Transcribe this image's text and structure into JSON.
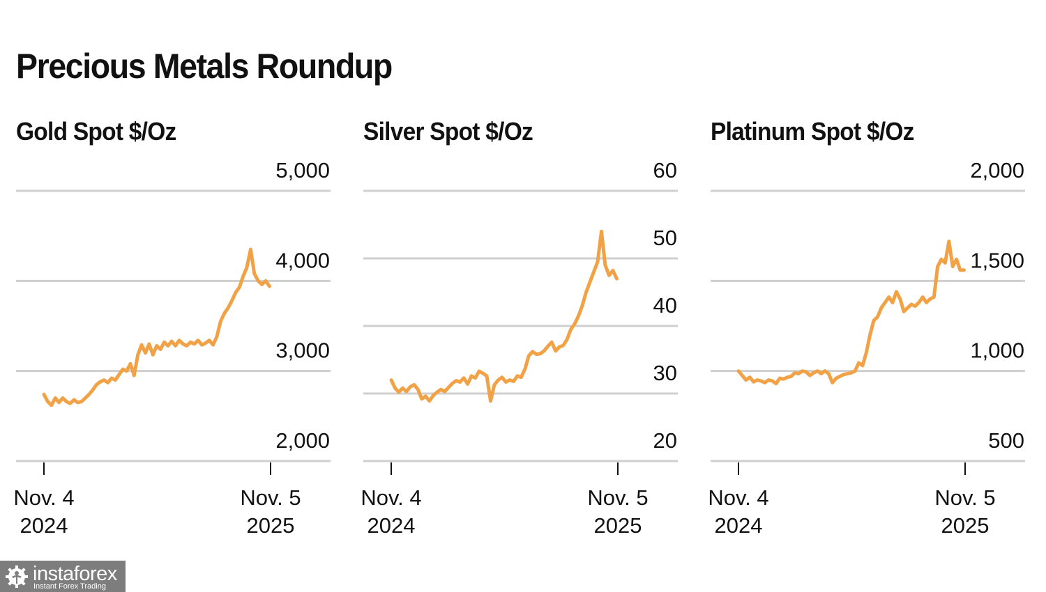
{
  "page": {
    "title": "Precious Metals Roundup"
  },
  "watermark": {
    "brand": "instaforex",
    "tagline": "Instant Forex Trading",
    "icon": "gear-person-icon"
  },
  "colors": {
    "line": "#f2a246",
    "grid": "#cfcfcf",
    "text": "#111111",
    "watermark_bg": "#7d7d7d"
  },
  "chart_data": [
    {
      "type": "line",
      "title": "Gold Spot $/Oz",
      "xlabel": "",
      "ylabel": "",
      "x_ticks": [
        {
          "label_line1": "Nov. 4",
          "label_line2": "2024"
        },
        {
          "label_line1": "Nov. 5",
          "label_line2": "2025"
        }
      ],
      "x_range": [
        "2024-11-04",
        "2025-11-05"
      ],
      "y_ticks": [
        2000,
        3000,
        4000,
        5000
      ],
      "y_tick_labels": [
        "2,000",
        "3,000",
        "4,000",
        "5,000"
      ],
      "ylim": [
        2000,
        5000
      ],
      "grid": true,
      "series": [
        {
          "name": "Gold Spot $/Oz",
          "values": [
            2740,
            2660,
            2620,
            2700,
            2650,
            2700,
            2660,
            2640,
            2680,
            2650,
            2660,
            2700,
            2740,
            2790,
            2850,
            2880,
            2900,
            2870,
            2920,
            2900,
            2960,
            3020,
            3000,
            3080,
            2950,
            3180,
            3290,
            3200,
            3300,
            3180,
            3280,
            3240,
            3320,
            3280,
            3330,
            3280,
            3340,
            3300,
            3280,
            3320,
            3300,
            3340,
            3290,
            3310,
            3340,
            3290,
            3380,
            3550,
            3640,
            3700,
            3780,
            3870,
            3930,
            4050,
            4150,
            4350,
            4080,
            4000,
            3960,
            4000,
            3940
          ]
        }
      ]
    },
    {
      "type": "line",
      "title": "Silver Spot $/Oz",
      "xlabel": "",
      "ylabel": "",
      "x_ticks": [
        {
          "label_line1": "Nov. 4",
          "label_line2": "2024"
        },
        {
          "label_line1": "Nov. 5",
          "label_line2": "2025"
        }
      ],
      "x_range": [
        "2024-11-04",
        "2025-11-05"
      ],
      "y_ticks": [
        20,
        30,
        40,
        50,
        60
      ],
      "y_tick_labels": [
        "20",
        "30",
        "40",
        "50",
        "60"
      ],
      "ylim": [
        20,
        60
      ],
      "grid": true,
      "series": [
        {
          "name": "Silver Spot $/Oz",
          "values": [
            32.0,
            30.8,
            30.2,
            30.8,
            30.3,
            31.0,
            31.3,
            30.6,
            29.2,
            29.6,
            28.9,
            29.7,
            30.2,
            30.6,
            30.3,
            30.9,
            31.5,
            31.9,
            31.7,
            32.3,
            31.4,
            32.6,
            32.3,
            33.3,
            33.0,
            32.6,
            28.9,
            31.3,
            32.0,
            32.4,
            31.7,
            32.0,
            31.8,
            32.6,
            32.4,
            33.6,
            35.6,
            36.2,
            35.8,
            35.9,
            36.3,
            37.0,
            37.6,
            36.3,
            36.9,
            37.1,
            38.0,
            39.5,
            40.3,
            41.5,
            43.0,
            45.0,
            46.5,
            48.0,
            49.5,
            54.0,
            49.0,
            47.5,
            48.2,
            47.0
          ]
        }
      ]
    },
    {
      "type": "line",
      "title": "Platinum Spot $/Oz",
      "xlabel": "",
      "ylabel": "",
      "x_ticks": [
        {
          "label_line1": "Nov. 4",
          "label_line2": "2024"
        },
        {
          "label_line1": "Nov. 5",
          "label_line2": "2025"
        }
      ],
      "x_range": [
        "2024-11-04",
        "2025-11-05"
      ],
      "y_ticks": [
        500,
        1000,
        1500,
        2000
      ],
      "y_tick_labels": [
        "500",
        "1,000",
        "1,500",
        "2,000"
      ],
      "ylim": [
        500,
        2000
      ],
      "grid": true,
      "series": [
        {
          "name": "Platinum Spot $/Oz",
          "values": [
            1000,
            975,
            950,
            965,
            940,
            950,
            945,
            935,
            950,
            945,
            930,
            960,
            955,
            965,
            970,
            990,
            985,
            1000,
            995,
            975,
            990,
            1000,
            985,
            1000,
            985,
            935,
            960,
            970,
            980,
            985,
            990,
            1000,
            1045,
            1030,
            1100,
            1200,
            1280,
            1300,
            1350,
            1380,
            1410,
            1380,
            1440,
            1400,
            1330,
            1350,
            1370,
            1360,
            1380,
            1410,
            1380,
            1400,
            1410,
            1580,
            1620,
            1600,
            1720,
            1580,
            1620,
            1560,
            1560
          ]
        }
      ]
    }
  ]
}
